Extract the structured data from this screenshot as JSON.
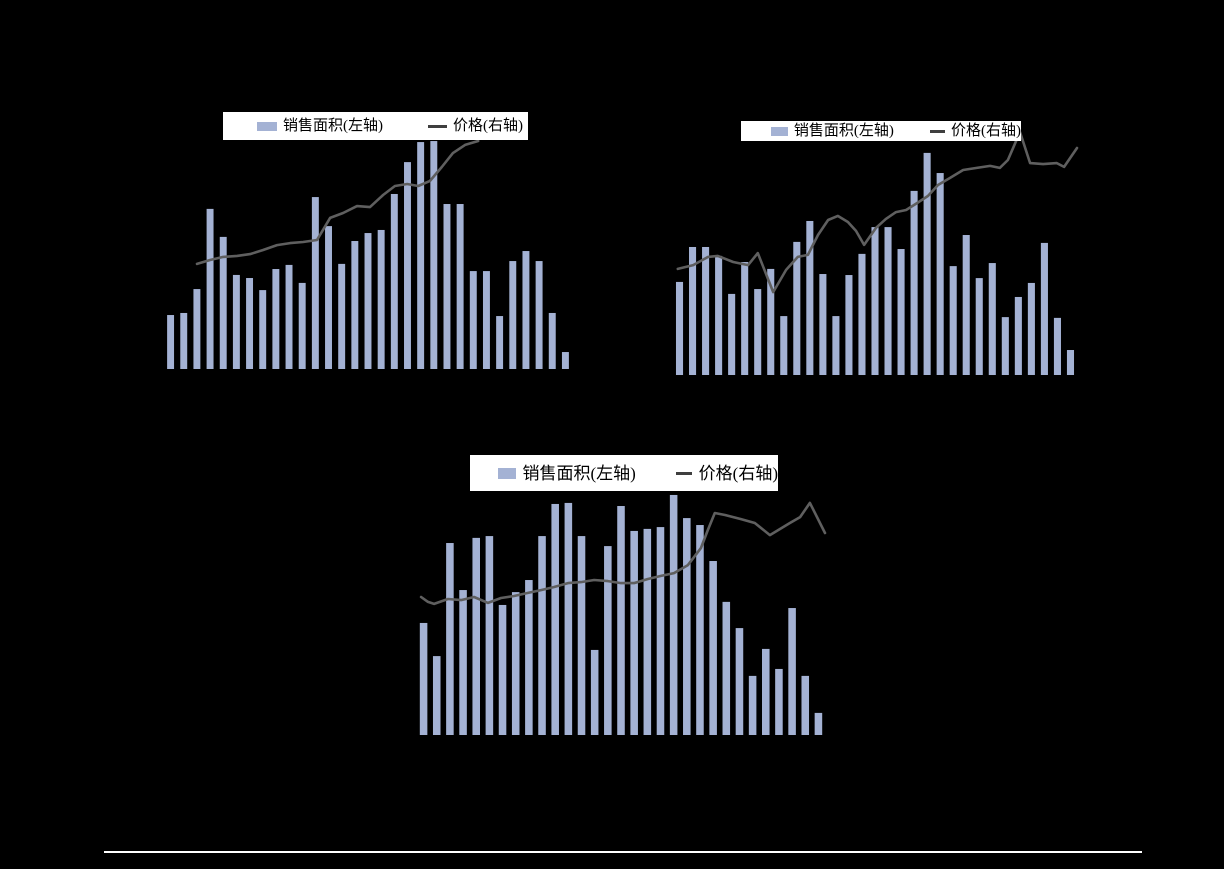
{
  "page": {
    "background_color": "#000000",
    "divider_color": "#ffffff"
  },
  "colors": {
    "bar_fill": "#a4b2d4",
    "line_stroke": "#5f5f5f",
    "legend_line_swatch": "#3f3f3f",
    "legend_background": "#ffffff",
    "legend_text": "#000000"
  },
  "charts": [
    {
      "id": "top-left",
      "legend": {
        "bar_label": "销售面积(左轴)",
        "line_label": "价格(右轴)"
      },
      "chart_data": {
        "type": "bar+line",
        "axes_visible": false,
        "x_tick_labels_visible": false,
        "legend_position": "top-center",
        "ylim": [
          0,
          100
        ],
        "bar_width_pct": 1.7,
        "series": [
          {
            "name": "销售面积(左轴)",
            "type": "bar",
            "axis": "left",
            "values_pct_of_plot_height": [
              21,
              21.8,
              31.1,
              62.3,
              51.4,
              36.6,
              35.4,
              30.7,
              38.9,
              40.5,
              33.5,
              66.9,
              55.6,
              40.9,
              49.8,
              52.9,
              54.1,
              68.1,
              80.5,
              88.3,
              88.7,
              64.2,
              64.2,
              38.1,
              38.1,
              20.6,
              42,
              45.9,
              42,
              21.8,
              6.6
            ]
          },
          {
            "name": "价格(右轴)",
            "type": "line",
            "axis": "right",
            "points_pct": [
              [
                8.1,
                40.9
              ],
              [
                11.3,
                42.4
              ],
              [
                14.5,
                43.6
              ],
              [
                17.9,
                44
              ],
              [
                21.1,
                44.7
              ],
              [
                24.3,
                46.3
              ],
              [
                27.7,
                48.2
              ],
              [
                30.9,
                49
              ],
              [
                34.1,
                49.4
              ],
              [
                37.5,
                50.2
              ],
              [
                40.7,
                58.8
              ],
              [
                43.9,
                60.7
              ],
              [
                47.3,
                63.4
              ],
              [
                50.5,
                63
              ],
              [
                53.7,
                67.7
              ],
              [
                56.6,
                71.2
              ],
              [
                59.6,
                72
              ],
              [
                62.3,
                71.2
              ],
              [
                65.2,
                73.2
              ],
              [
                68.1,
                78.6
              ],
              [
                70.8,
                84
              ],
              [
                73.8,
                87.2
              ],
              [
                77,
                88.7
              ]
            ]
          }
        ]
      }
    },
    {
      "id": "top-right",
      "legend": {
        "bar_label": "销售面积(左轴)",
        "line_label": "价格(右轴)"
      },
      "chart_data": {
        "type": "bar+line",
        "axes_visible": false,
        "x_tick_labels_visible": false,
        "legend_position": "top-center",
        "ylim": [
          0,
          100
        ],
        "bar_width_pct": 1.75,
        "series": [
          {
            "name": "销售面积(左轴)",
            "type": "bar",
            "axis": "left",
            "values_pct_of_plot_height": [
              36.5,
              50.2,
              50.2,
              46.7,
              31.8,
              44.3,
              33.7,
              41.6,
              23.1,
              52.2,
              60.4,
              39.6,
              23.1,
              39.2,
              47.5,
              58,
              58,
              49.4,
              72.2,
              87.1,
              79.2,
              42.7,
              54.9,
              38,
              43.9,
              22.7,
              30.6,
              36.1,
              51.8,
              22.4,
              9.8
            ]
          },
          {
            "name": "价格(右轴)",
            "type": "line",
            "axis": "right",
            "points_pct": [
              [
                1.2,
                41.6
              ],
              [
                5,
                43.1
              ],
              [
                8.7,
                46.3
              ],
              [
                11.1,
                46.7
              ],
              [
                14.9,
                44.3
              ],
              [
                18.6,
                43.1
              ],
              [
                21,
                47.8
              ],
              [
                24.8,
                32.5
              ],
              [
                28,
                41.2
              ],
              [
                30.9,
                46.3
              ],
              [
                33.4,
                47.1
              ],
              [
                35.9,
                54.9
              ],
              [
                38.4,
                60.8
              ],
              [
                40.8,
                62.4
              ],
              [
                43.3,
                60
              ],
              [
                45.3,
                56.5
              ],
              [
                47.3,
                51
              ],
              [
                50.2,
                57.6
              ],
              [
                52.7,
                61.2
              ],
              [
                55.2,
                63.9
              ],
              [
                57.7,
                64.7
              ],
              [
                60.1,
                67.1
              ],
              [
                63.1,
                70.2
              ],
              [
                65.6,
                74.5
              ],
              [
                68.6,
                77.3
              ],
              [
                71.8,
                80.4
              ],
              [
                75.2,
                81.2
              ],
              [
                78.5,
                82
              ],
              [
                80.9,
                81.2
              ],
              [
                82.9,
                84.3
              ],
              [
                85.9,
                95.3
              ],
              [
                88.4,
                83.1
              ],
              [
                91.6,
                82.7
              ],
              [
                95,
                83.1
              ],
              [
                96.8,
                81.6
              ],
              [
                100,
                89
              ]
            ]
          }
        ]
      }
    },
    {
      "id": "bottom-center",
      "legend": {
        "bar_label": "销售面积(左轴)",
        "line_label": "价格(右轴)"
      },
      "chart_data": {
        "type": "bar+line",
        "axes_visible": false,
        "x_tick_labels_visible": false,
        "legend_position": "top-center",
        "ylim": [
          0,
          100
        ],
        "bar_width_pct": 1.85,
        "series": [
          {
            "name": "销售面积(左轴)",
            "type": "bar",
            "axis": "left",
            "values_pct_of_plot_height": [
              43.6,
              30.7,
              74.7,
              56.4,
              76.7,
              77.4,
              50.6,
              55.6,
              60.3,
              77.4,
              89.9,
              90.3,
              77.4,
              33.1,
              73.5,
              89.1,
              79.4,
              80.2,
              80.9,
              93.4,
              84.4,
              81.7,
              67.7,
              51.8,
              41.6,
              23,
              33.5,
              25.7,
              49.4,
              23,
              8.6
            ]
          },
          {
            "name": "价格(右轴)",
            "type": "line",
            "axis": "right",
            "points_pct": [
              [
                1,
                53.7
              ],
              [
                2.7,
                51.8
              ],
              [
                4.2,
                51
              ],
              [
                7.6,
                52.9
              ],
              [
                10.8,
                52.5
              ],
              [
                14,
                53.7
              ],
              [
                17.4,
                51.4
              ],
              [
                20.6,
                53.3
              ],
              [
                23.8,
                54.1
              ],
              [
                27.2,
                55.3
              ],
              [
                30.4,
                56.4
              ],
              [
                33.6,
                57.6
              ],
              [
                37,
                59.1
              ],
              [
                40.2,
                59.5
              ],
              [
                43.4,
                60.3
              ],
              [
                46.8,
                59.9
              ],
              [
                50,
                59.1
              ],
              [
                53.2,
                59.1
              ],
              [
                56.6,
                60.7
              ],
              [
                59.8,
                61.9
              ],
              [
                63,
                63
              ],
              [
                66.4,
                66.1
              ],
              [
                69.6,
                72.8
              ],
              [
                71.3,
                79.8
              ],
              [
                73,
                86.4
              ],
              [
                75.5,
                85.6
              ],
              [
                79.4,
                84
              ],
              [
                82.8,
                82.5
              ],
              [
                86.5,
                77.8
              ],
              [
                91.4,
                82.5
              ],
              [
                93.9,
                84.8
              ],
              [
                96.3,
                90.3
              ],
              [
                100,
                78.6
              ]
            ]
          }
        ]
      }
    }
  ]
}
